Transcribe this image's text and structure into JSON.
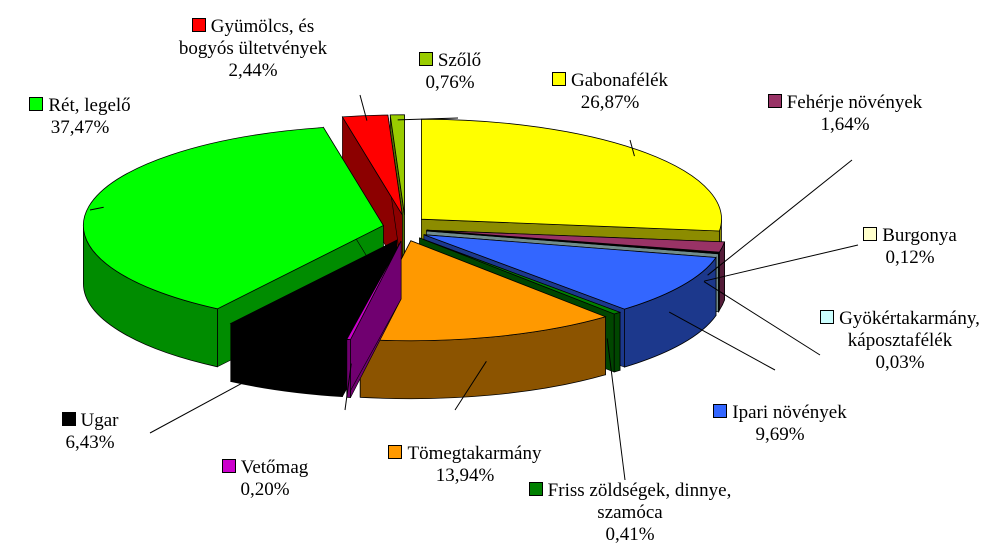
{
  "chart_data": {
    "type": "pie",
    "categories": [
      "Gabonafélék",
      "Fehérje növények",
      "Burgonya",
      "Gyökértakarmány, káposztafélék",
      "Ipari növények",
      "Friss zöldségek, dinnye, szamóca",
      "Tömegtakarmány",
      "Vetőmag",
      "Ugar",
      "Rét, legelő",
      "Gyümölcs, és bogyós ültetvények",
      "Szőlő"
    ],
    "values": [
      26.87,
      1.64,
      0.12,
      0.03,
      9.69,
      0.41,
      13.94,
      0.2,
      6.43,
      37.47,
      2.44,
      0.76
    ],
    "value_labels": [
      "26,87%",
      "1,64%",
      "0,12%",
      "0,03%",
      "9,69%",
      "0,41%",
      "13,94%",
      "0,20%",
      "6,43%",
      "37,47%",
      "2,44%",
      "0,76%"
    ],
    "colors": [
      "#ffff00",
      "#993366",
      "#ffffcc",
      "#ccffff",
      "#3366ff",
      "#008000",
      "#ff9900",
      "#cc00cc",
      "#000000",
      "#00ff00",
      "#ff0000",
      "#99cc00"
    ]
  }
}
